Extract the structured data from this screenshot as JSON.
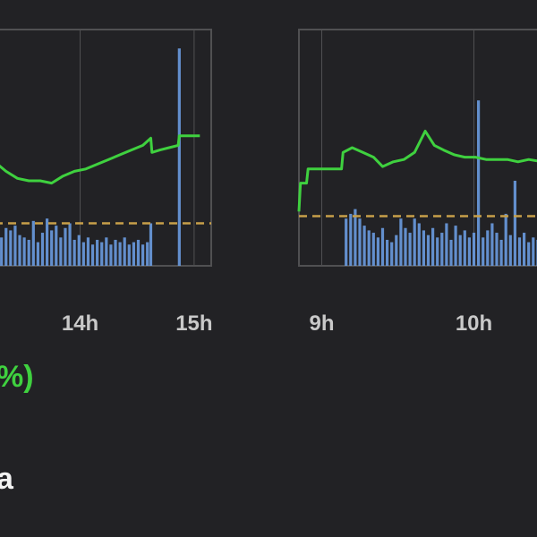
{
  "change_text": "%)",
  "bottom_text": "a",
  "colors": {
    "background": "#222225",
    "frame": "#505052",
    "price_line": "#3fd13f",
    "reference_line": "#c8a04a",
    "volume": "#6a9be0",
    "tick_label": "#c9c9c9"
  },
  "chart_data": [
    {
      "type": "line",
      "title": "",
      "xlabel": "",
      "ylabel": "",
      "x_ticks": [
        "14h",
        "15h"
      ],
      "x_tick_values": [
        14,
        15
      ],
      "xlim": [
        13.25,
        15.15
      ],
      "ylim": [
        0,
        100
      ],
      "grid": true,
      "reference_line": 18,
      "series": [
        {
          "kind": "price",
          "x": [
            13.25,
            13.35,
            13.45,
            13.55,
            13.65,
            13.75,
            13.85,
            13.95,
            14.05,
            14.15,
            14.25,
            14.35,
            14.45,
            14.55,
            14.62,
            14.63,
            14.7,
            14.78,
            14.86,
            14.87,
            15.05
          ],
          "y": [
            44,
            40,
            37,
            36,
            36,
            35,
            38,
            40,
            41,
            43,
            45,
            47,
            49,
            51,
            54,
            48,
            49,
            50,
            51,
            55,
            55
          ]
        }
      ],
      "volume": {
        "x": [
          13.27,
          13.31,
          13.35,
          13.39,
          13.43,
          13.47,
          13.51,
          13.55,
          13.59,
          13.63,
          13.67,
          13.71,
          13.75,
          13.79,
          13.83,
          13.87,
          13.91,
          13.95,
          13.99,
          14.03,
          14.07,
          14.11,
          14.15,
          14.19,
          14.23,
          14.27,
          14.31,
          14.35,
          14.39,
          14.43,
          14.47,
          14.51,
          14.55,
          14.59,
          14.62,
          14.87
        ],
        "values": [
          14,
          12,
          16,
          15,
          17,
          13,
          12,
          11,
          19,
          10,
          14,
          20,
          15,
          17,
          12,
          16,
          18,
          11,
          13,
          10,
          12,
          9,
          11,
          10,
          12,
          9,
          11,
          10,
          12,
          9,
          10,
          11,
          9,
          10,
          18,
          92
        ]
      }
    },
    {
      "type": "line",
      "title": "",
      "xlabel": "",
      "ylabel": "",
      "x_ticks": [
        "9h",
        "10h"
      ],
      "x_tick_values": [
        9,
        10
      ],
      "xlim": [
        8.85,
        10.45
      ],
      "ylim": [
        0,
        100
      ],
      "grid": true,
      "reference_line": 21,
      "series": [
        {
          "kind": "price",
          "x": [
            8.85,
            8.86,
            8.9,
            8.91,
            8.97,
            9.05,
            9.13,
            9.14,
            9.2,
            9.27,
            9.34,
            9.4,
            9.47,
            9.54,
            9.61,
            9.68,
            9.74,
            9.8,
            9.87,
            9.94,
            10.01,
            10.08,
            10.15,
            10.22,
            10.29,
            10.36,
            10.45
          ],
          "y": [
            23,
            35,
            35,
            41,
            41,
            41,
            41,
            48,
            50,
            48,
            46,
            42,
            44,
            45,
            48,
            57,
            51,
            49,
            47,
            46,
            46,
            45,
            45,
            45,
            44,
            45,
            44
          ]
        }
      ],
      "volume": {
        "x": [
          9.16,
          9.19,
          9.22,
          9.25,
          9.28,
          9.31,
          9.34,
          9.37,
          9.4,
          9.43,
          9.46,
          9.49,
          9.52,
          9.55,
          9.58,
          9.61,
          9.64,
          9.67,
          9.7,
          9.73,
          9.76,
          9.79,
          9.82,
          9.85,
          9.88,
          9.91,
          9.94,
          9.97,
          10.0,
          10.03,
          10.06,
          10.09,
          10.12,
          10.15,
          10.18,
          10.21,
          10.24,
          10.27,
          10.3,
          10.33,
          10.36,
          10.39,
          10.42
        ],
        "values": [
          20,
          22,
          24,
          20,
          17,
          15,
          14,
          12,
          16,
          11,
          10,
          13,
          20,
          16,
          14,
          20,
          18,
          15,
          13,
          16,
          12,
          14,
          18,
          11,
          17,
          13,
          15,
          12,
          14,
          70,
          12,
          15,
          18,
          14,
          11,
          22,
          13,
          36,
          12,
          14,
          10,
          12,
          11
        ]
      }
    }
  ]
}
